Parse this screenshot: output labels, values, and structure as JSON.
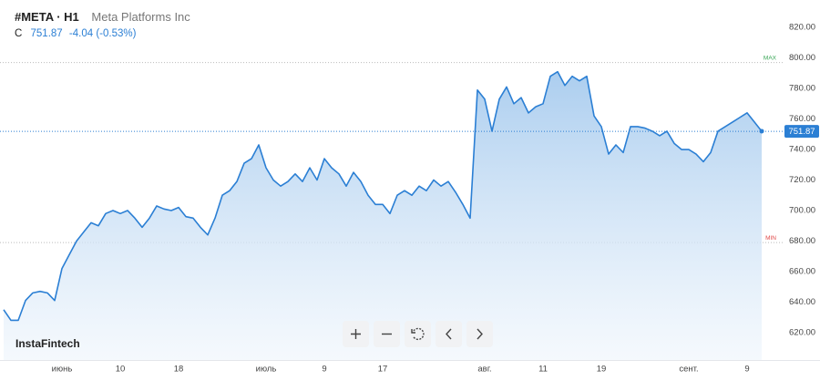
{
  "header": {
    "symbol": "#META · H1",
    "name": "Meta Platforms Inc",
    "close_label": "C",
    "change": "-4.04 (-0.53%)"
  },
  "logo": "InstaFintech",
  "chart_data": {
    "type": "area",
    "categories": [
      null,
      null,
      null,
      null,
      null,
      null,
      null,
      null,
      "июнь",
      null,
      null,
      null,
      null,
      null,
      null,
      null,
      "10",
      null,
      null,
      null,
      null,
      null,
      null,
      null,
      "18",
      null,
      null,
      null,
      null,
      null,
      null,
      null,
      null,
      null,
      null,
      null,
      "июль",
      null,
      null,
      null,
      null,
      null,
      null,
      null,
      "9",
      null,
      null,
      null,
      null,
      null,
      null,
      null,
      "17",
      null,
      null,
      null,
      null,
      null,
      null,
      null,
      null,
      null,
      null,
      null,
      null,
      null,
      "авг.",
      null,
      null,
      null,
      null,
      null,
      null,
      null,
      "11",
      null,
      null,
      null,
      null,
      null,
      null,
      null,
      "19",
      null,
      null,
      null,
      null,
      null,
      null,
      null,
      null,
      null,
      null,
      null,
      "сент.",
      null,
      null,
      null,
      null,
      null,
      null,
      null,
      "9",
      null,
      null
    ],
    "values": [
      635,
      628,
      628,
      641,
      646,
      647,
      646,
      641,
      662,
      671,
      680,
      686,
      692,
      690,
      698,
      700,
      698,
      700,
      695,
      689,
      695,
      703,
      701,
      700,
      702,
      696,
      695,
      689,
      684,
      695,
      710,
      713,
      719,
      731,
      734,
      743,
      728,
      720,
      716,
      719,
      724,
      719,
      728,
      720,
      734,
      728,
      724,
      716,
      725,
      719,
      710,
      704,
      704,
      698,
      710,
      713,
      710,
      716,
      713,
      720,
      716,
      719,
      712,
      704,
      695,
      779,
      773,
      752,
      773,
      781,
      770,
      774,
      764,
      768,
      770,
      788,
      791,
      782,
      788,
      785,
      788,
      762,
      755,
      737,
      743,
      738,
      755,
      755,
      754,
      752,
      749,
      752,
      744,
      740,
      740,
      737,
      732,
      738,
      752,
      755,
      758,
      761,
      764,
      758,
      752
    ],
    "color": "#2b7fd4",
    "last_value": 751.87,
    "max_line": {
      "value": 797,
      "label": "MAX"
    },
    "min_line": {
      "value": 679,
      "label": "MIN"
    },
    "ylim": [
      602,
      838
    ],
    "yticks": [
      {
        "value": 620,
        "label": "620.00"
      },
      {
        "value": 640,
        "label": "640.00"
      },
      {
        "value": 660,
        "label": "660.00"
      },
      {
        "value": 680,
        "label": "680.00"
      },
      {
        "value": 700,
        "label": "700.00"
      },
      {
        "value": 720,
        "label": "720.00"
      },
      {
        "value": 740,
        "label": "740.00"
      },
      {
        "value": 760,
        "label": "760.00"
      },
      {
        "value": 780,
        "label": "780.00"
      },
      {
        "value": 800,
        "label": "800.00"
      },
      {
        "value": 820,
        "label": "820.00"
      }
    ],
    "grid": false
  }
}
